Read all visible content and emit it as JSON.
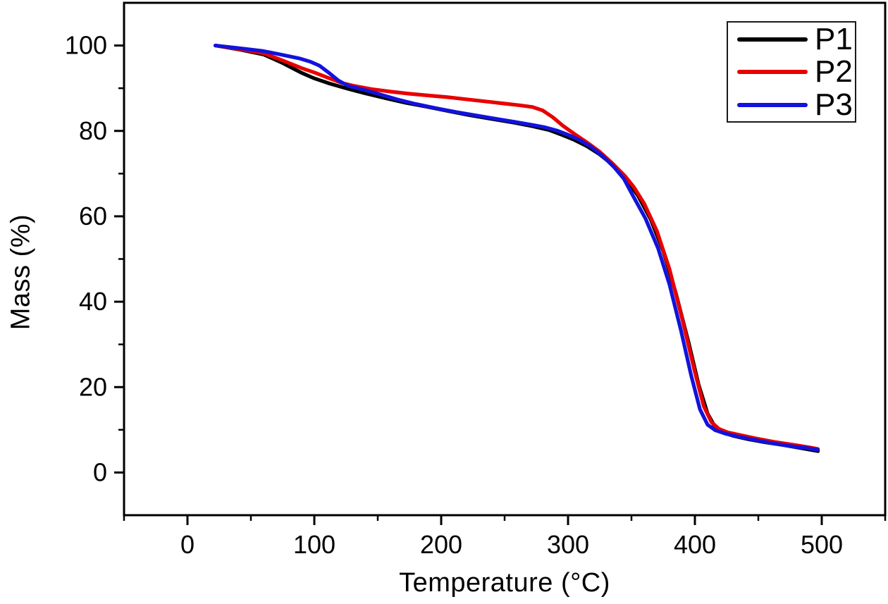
{
  "figure": {
    "background_color": "#ffffff",
    "frame_color": "#000000",
    "legend": {
      "position": "top-right",
      "border_color": "#1a1a1a"
    }
  },
  "chart_data": {
    "type": "line",
    "title": "",
    "xlabel": "Temperature (°C)",
    "ylabel": "Mass (%)",
    "xlim": [
      -50,
      550
    ],
    "ylim": [
      -10,
      110
    ],
    "x_major_ticks": [
      0,
      100,
      200,
      300,
      400,
      500
    ],
    "x_minor_ticks": [
      -50,
      50,
      150,
      250,
      350,
      450,
      550
    ],
    "y_major_ticks": [
      0,
      20,
      40,
      60,
      80,
      100
    ],
    "y_minor_ticks": [
      10,
      30,
      50,
      70,
      90
    ],
    "grid": false,
    "legend_position": "top-right",
    "series": [
      {
        "name": "P1",
        "color": "#000000",
        "points": [
          [
            22,
            100
          ],
          [
            40,
            99.1
          ],
          [
            60,
            97.9
          ],
          [
            75,
            95.9
          ],
          [
            90,
            93.6
          ],
          [
            100,
            92.3
          ],
          [
            112,
            91.1
          ],
          [
            125,
            90.0
          ],
          [
            140,
            88.8
          ],
          [
            157,
            87.6
          ],
          [
            172,
            86.6
          ],
          [
            188,
            85.7
          ],
          [
            205,
            84.7
          ],
          [
            222,
            83.7
          ],
          [
            240,
            82.8
          ],
          [
            258,
            81.9
          ],
          [
            272,
            81.1
          ],
          [
            285,
            80.2
          ],
          [
            295,
            79.1
          ],
          [
            305,
            77.9
          ],
          [
            315,
            76.4
          ],
          [
            325,
            74.5
          ],
          [
            335,
            72.1
          ],
          [
            345,
            69.0
          ],
          [
            355,
            64.9
          ],
          [
            365,
            59.4
          ],
          [
            375,
            51.9
          ],
          [
            385,
            42.0
          ],
          [
            395,
            30.5
          ],
          [
            403,
            20.5
          ],
          [
            410,
            13.8
          ],
          [
            416,
            10.6
          ],
          [
            422,
            9.4
          ],
          [
            430,
            8.6
          ],
          [
            442,
            7.8
          ],
          [
            455,
            7.1
          ],
          [
            470,
            6.4
          ],
          [
            484,
            5.7
          ],
          [
            497,
            5.0
          ]
        ]
      },
      {
        "name": "P2",
        "color": "#e80000",
        "points": [
          [
            22,
            100
          ],
          [
            40,
            99.2
          ],
          [
            60,
            98.2
          ],
          [
            75,
            96.5
          ],
          [
            90,
            94.7
          ],
          [
            100,
            93.7
          ],
          [
            112,
            92.3
          ],
          [
            122,
            91.2
          ],
          [
            132,
            90.5
          ],
          [
            145,
            89.8
          ],
          [
            160,
            89.2
          ],
          [
            175,
            88.7
          ],
          [
            190,
            88.3
          ],
          [
            205,
            87.9
          ],
          [
            220,
            87.4
          ],
          [
            235,
            86.9
          ],
          [
            250,
            86.4
          ],
          [
            262,
            86.0
          ],
          [
            272,
            85.6
          ],
          [
            280,
            84.8
          ],
          [
            288,
            83.2
          ],
          [
            296,
            81.2
          ],
          [
            305,
            79.3
          ],
          [
            315,
            77.3
          ],
          [
            325,
            75.1
          ],
          [
            335,
            72.4
          ],
          [
            345,
            69.4
          ],
          [
            352,
            66.8
          ],
          [
            360,
            63.0
          ],
          [
            370,
            56.6
          ],
          [
            380,
            47.6
          ],
          [
            390,
            36.0
          ],
          [
            400,
            23.5
          ],
          [
            407,
            15.5
          ],
          [
            413,
            11.8
          ],
          [
            419,
            10.2
          ],
          [
            426,
            9.4
          ],
          [
            435,
            8.8
          ],
          [
            448,
            8.0
          ],
          [
            462,
            7.2
          ],
          [
            477,
            6.5
          ],
          [
            490,
            5.9
          ],
          [
            497,
            5.5
          ]
        ]
      },
      {
        "name": "P3",
        "color": "#1212dd",
        "points": [
          [
            22,
            100
          ],
          [
            40,
            99.4
          ],
          [
            60,
            98.7
          ],
          [
            75,
            97.8
          ],
          [
            88,
            97.0
          ],
          [
            97,
            96.2
          ],
          [
            104,
            95.3
          ],
          [
            112,
            93.5
          ],
          [
            119,
            91.8
          ],
          [
            127,
            90.5
          ],
          [
            137,
            89.8
          ],
          [
            150,
            88.7
          ],
          [
            165,
            87.4
          ],
          [
            180,
            86.3
          ],
          [
            196,
            85.3
          ],
          [
            212,
            84.4
          ],
          [
            228,
            83.6
          ],
          [
            244,
            82.8
          ],
          [
            258,
            82.1
          ],
          [
            270,
            81.5
          ],
          [
            281,
            80.9
          ],
          [
            291,
            80.1
          ],
          [
            300,
            79.1
          ],
          [
            309,
            77.9
          ],
          [
            318,
            76.3
          ],
          [
            327,
            74.2
          ],
          [
            336,
            71.6
          ],
          [
            344,
            68.8
          ],
          [
            351,
            64.9
          ],
          [
            361,
            59.5
          ],
          [
            371,
            52.5
          ],
          [
            380,
            44.0
          ],
          [
            389,
            33.3
          ],
          [
            397,
            22.8
          ],
          [
            404,
            14.8
          ],
          [
            410,
            11.2
          ],
          [
            416,
            9.9
          ],
          [
            424,
            9.1
          ],
          [
            434,
            8.4
          ],
          [
            448,
            7.6
          ],
          [
            462,
            6.8
          ],
          [
            477,
            6.1
          ],
          [
            489,
            5.7
          ],
          [
            497,
            5.3
          ]
        ]
      }
    ]
  }
}
